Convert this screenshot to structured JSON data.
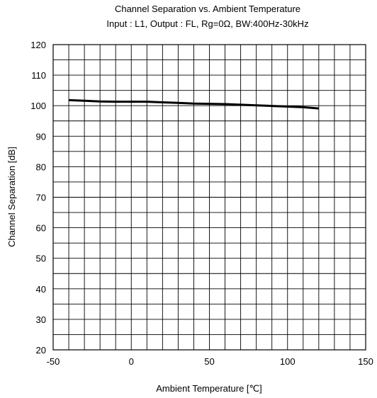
{
  "chart_data": {
    "type": "line",
    "title": "Channel Separation vs. Ambient Temperature",
    "subtitle": "Input : L1, Output : FL, Rg=0Ω, BW:400Hz-30kHz",
    "xlabel": "Ambient Temperature [℃]",
    "ylabel": "Channel Separation [dB]",
    "xlim": [
      -50,
      150
    ],
    "ylim": [
      20,
      120
    ],
    "xticks": [
      -50,
      0,
      50,
      100,
      150
    ],
    "yticks": [
      20,
      30,
      40,
      50,
      60,
      70,
      80,
      90,
      100,
      110,
      120
    ],
    "grid": true,
    "series": [
      {
        "color": "#000000",
        "x": [
          -40,
          -30,
          -20,
          -10,
          0,
          10,
          20,
          30,
          40,
          50,
          60,
          70,
          80,
          90,
          100,
          110,
          120
        ],
        "y": [
          101.8,
          101.6,
          101.4,
          101.3,
          101.3,
          101.3,
          101.1,
          100.9,
          100.7,
          100.6,
          100.5,
          100.3,
          100.1,
          99.9,
          99.7,
          99.5,
          99.1
        ]
      }
    ]
  }
}
